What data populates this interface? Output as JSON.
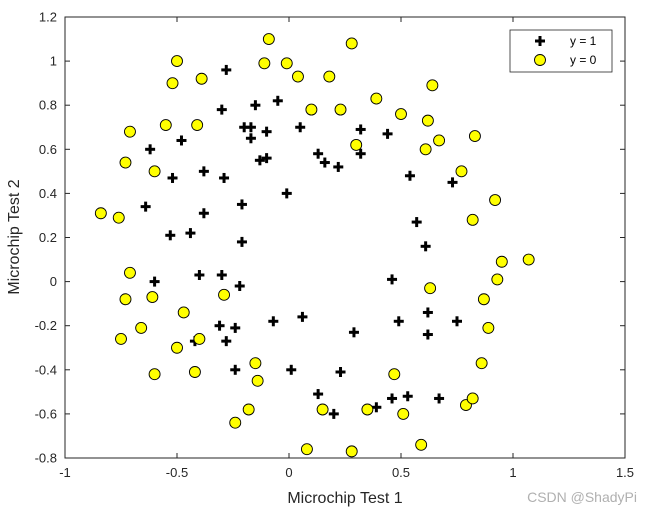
{
  "chart_data": {
    "type": "scatter",
    "xlabel": "Microchip Test 1",
    "ylabel": "Microchip Test 2",
    "xlim": [
      -1,
      1.5
    ],
    "ylim": [
      -0.8,
      1.2
    ],
    "xticks": [
      -1,
      -0.5,
      0,
      0.5,
      1,
      1.5
    ],
    "xtick_labels": [
      "-1",
      "-0.5",
      "0",
      "0.5",
      "1",
      "1.5"
    ],
    "yticks": [
      -0.8,
      -0.6,
      -0.4,
      -0.2,
      0,
      0.2,
      0.4,
      0.6,
      0.8,
      1,
      1.2
    ],
    "ytick_labels": [
      "-0.8",
      "-0.6",
      "-0.4",
      "-0.2",
      "0",
      "0.2",
      "0.4",
      "0.6",
      "0.8",
      "1",
      "1.2"
    ],
    "grid": false,
    "legend_position": "top-right",
    "series": [
      {
        "name": "y = 1",
        "marker": "plus",
        "color": "#000000",
        "points": [
          [
            -0.28,
            0.96
          ],
          [
            -0.05,
            0.82
          ],
          [
            -0.15,
            0.8
          ],
          [
            -0.3,
            0.78
          ],
          [
            -0.48,
            0.64
          ],
          [
            -0.62,
            0.6
          ],
          [
            -0.2,
            0.7
          ],
          [
            -0.17,
            0.7
          ],
          [
            -0.1,
            0.68
          ],
          [
            -0.17,
            0.65
          ],
          [
            -0.13,
            0.55
          ],
          [
            -0.1,
            0.56
          ],
          [
            0.05,
            0.7
          ],
          [
            0.13,
            0.58
          ],
          [
            0.16,
            0.54
          ],
          [
            0.22,
            0.52
          ],
          [
            0.32,
            0.69
          ],
          [
            0.32,
            0.58
          ],
          [
            0.44,
            0.67
          ],
          [
            0.54,
            0.48
          ],
          [
            0.73,
            0.45
          ],
          [
            -0.52,
            0.47
          ],
          [
            -0.38,
            0.5
          ],
          [
            -0.29,
            0.47
          ],
          [
            -0.64,
            0.34
          ],
          [
            -0.38,
            0.31
          ],
          [
            -0.21,
            0.35
          ],
          [
            -0.01,
            0.4
          ],
          [
            -0.53,
            0.21
          ],
          [
            -0.44,
            0.22
          ],
          [
            -0.21,
            0.18
          ],
          [
            0.57,
            0.27
          ],
          [
            0.61,
            0.16
          ],
          [
            -0.6,
            0.0
          ],
          [
            -0.4,
            0.03
          ],
          [
            -0.3,
            0.03
          ],
          [
            -0.22,
            -0.02
          ],
          [
            0.46,
            0.01
          ],
          [
            0.62,
            -0.14
          ],
          [
            0.75,
            -0.18
          ],
          [
            -0.31,
            -0.2
          ],
          [
            -0.24,
            -0.21
          ],
          [
            -0.07,
            -0.18
          ],
          [
            0.06,
            -0.16
          ],
          [
            0.29,
            -0.23
          ],
          [
            0.49,
            -0.18
          ],
          [
            0.62,
            -0.24
          ],
          [
            -0.42,
            -0.27
          ],
          [
            -0.28,
            -0.27
          ],
          [
            -0.24,
            -0.4
          ],
          [
            0.01,
            -0.4
          ],
          [
            0.23,
            -0.41
          ],
          [
            0.13,
            -0.51
          ],
          [
            0.2,
            -0.6
          ],
          [
            0.39,
            -0.57
          ],
          [
            0.46,
            -0.53
          ],
          [
            0.53,
            -0.52
          ],
          [
            0.67,
            -0.53
          ]
        ]
      },
      {
        "name": "y = 0",
        "marker": "circle",
        "color": "#ffff00",
        "points": [
          [
            -0.09,
            1.1
          ],
          [
            -0.01,
            0.99
          ],
          [
            -0.11,
            0.99
          ],
          [
            -0.5,
            1.0
          ],
          [
            0.28,
            1.08
          ],
          [
            0.04,
            0.93
          ],
          [
            0.18,
            0.93
          ],
          [
            -0.52,
            0.9
          ],
          [
            -0.39,
            0.92
          ],
          [
            0.64,
            0.89
          ],
          [
            0.39,
            0.83
          ],
          [
            0.1,
            0.78
          ],
          [
            0.23,
            0.78
          ],
          [
            0.5,
            0.76
          ],
          [
            0.62,
            0.73
          ],
          [
            -0.71,
            0.68
          ],
          [
            -0.55,
            0.71
          ],
          [
            -0.41,
            0.71
          ],
          [
            0.67,
            0.64
          ],
          [
            0.83,
            0.66
          ],
          [
            0.3,
            0.62
          ],
          [
            0.61,
            0.6
          ],
          [
            -0.73,
            0.54
          ],
          [
            -0.6,
            0.5
          ],
          [
            0.77,
            0.5
          ],
          [
            0.92,
            0.37
          ],
          [
            0.82,
            0.28
          ],
          [
            -0.84,
            0.31
          ],
          [
            -0.76,
            0.29
          ],
          [
            0.95,
            0.09
          ],
          [
            1.07,
            0.1
          ],
          [
            0.93,
            0.01
          ],
          [
            -0.71,
            0.04
          ],
          [
            -0.73,
            -0.08
          ],
          [
            -0.61,
            -0.07
          ],
          [
            0.63,
            -0.03
          ],
          [
            0.87,
            -0.08
          ],
          [
            -0.29,
            -0.06
          ],
          [
            -0.66,
            -0.21
          ],
          [
            -0.47,
            -0.14
          ],
          [
            0.89,
            -0.21
          ],
          [
            -0.4,
            -0.26
          ],
          [
            -0.75,
            -0.26
          ],
          [
            -0.5,
            -0.3
          ],
          [
            -0.6,
            -0.42
          ],
          [
            -0.42,
            -0.41
          ],
          [
            -0.15,
            -0.37
          ],
          [
            -0.14,
            -0.45
          ],
          [
            0.86,
            -0.37
          ],
          [
            0.47,
            -0.42
          ],
          [
            0.79,
            -0.56
          ],
          [
            0.82,
            -0.53
          ],
          [
            -0.18,
            -0.58
          ],
          [
            0.15,
            -0.58
          ],
          [
            0.35,
            -0.58
          ],
          [
            0.51,
            -0.6
          ],
          [
            -0.24,
            -0.64
          ],
          [
            0.08,
            -0.76
          ],
          [
            0.28,
            -0.77
          ],
          [
            0.59,
            -0.74
          ]
        ]
      }
    ]
  },
  "footer": {
    "watermark": "CSDN @ShadyPi"
  }
}
